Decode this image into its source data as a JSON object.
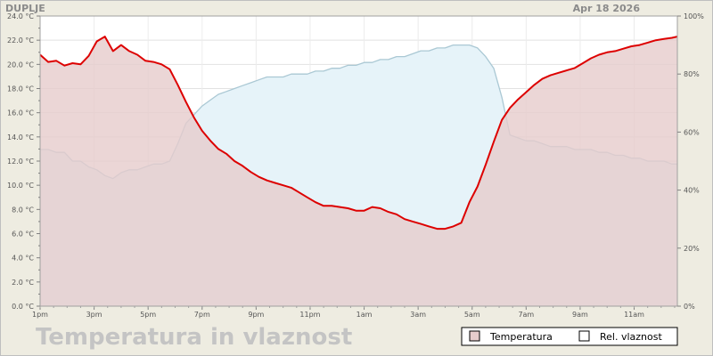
{
  "chart_data": {
    "type": "area",
    "station": "DUPLJE",
    "date": "Apr 18 2026",
    "title": "Temperatura in vlaznost",
    "x_ticks": [
      "1pm",
      "3pm",
      "5pm",
      "7pm",
      "9pm",
      "11pm",
      "1am",
      "3am",
      "5am",
      "7am",
      "9am",
      "11am"
    ],
    "x_range_hours": [
      13,
      36.6
    ],
    "y_left": {
      "unit": "°C",
      "lim": [
        0,
        24
      ],
      "ticks": [
        "0.0 °C",
        "2.0 °C",
        "4.0 °C",
        "6.0 °C",
        "8.0 °C",
        "10.0 °C",
        "12.0 °C",
        "14.0 °C",
        "16.0 °C",
        "18.0 °C",
        "20.0 °C",
        "22.0 °C",
        "24.0 °C"
      ]
    },
    "y_right": {
      "unit": "%",
      "lim": [
        0,
        100
      ],
      "ticks": [
        "0%",
        "20%",
        "40%",
        "60%",
        "80%",
        "100%"
      ]
    },
    "grid": true,
    "legend_position": "bottom-right",
    "series": [
      {
        "name": "Temperatura",
        "axis": "left",
        "color": "#dd0000",
        "fill": "#e6cccc",
        "x": [
          13.0,
          13.3,
          13.6,
          13.9,
          14.2,
          14.5,
          14.8,
          15.1,
          15.4,
          15.7,
          16.0,
          16.3,
          16.6,
          16.9,
          17.2,
          17.5,
          17.8,
          18.1,
          18.4,
          18.7,
          19.0,
          19.3,
          19.6,
          19.9,
          20.2,
          20.5,
          20.8,
          21.1,
          21.4,
          21.7,
          22.0,
          22.3,
          22.6,
          22.9,
          23.2,
          23.5,
          23.8,
          24.1,
          24.4,
          24.7,
          25.0,
          25.3,
          25.6,
          25.9,
          26.2,
          26.5,
          26.8,
          27.1,
          27.4,
          27.7,
          28.0,
          28.3,
          28.6,
          28.9,
          29.2,
          29.5,
          29.8,
          30.1,
          30.4,
          30.7,
          31.0,
          31.3,
          31.6,
          31.9,
          32.2,
          32.5,
          32.8,
          33.1,
          33.4,
          33.7,
          34.0,
          34.3,
          34.6,
          34.9,
          35.2,
          35.5,
          35.8,
          36.1,
          36.4,
          36.6
        ],
        "values": [
          20.8,
          20.2,
          20.3,
          19.9,
          20.1,
          20.0,
          20.7,
          21.9,
          22.3,
          21.1,
          21.6,
          21.1,
          20.8,
          20.3,
          20.2,
          20.0,
          19.6,
          18.3,
          16.9,
          15.6,
          14.5,
          13.7,
          13.0,
          12.6,
          12.0,
          11.6,
          11.1,
          10.7,
          10.4,
          10.2,
          10.0,
          9.8,
          9.4,
          9.0,
          8.6,
          8.3,
          8.3,
          8.2,
          8.1,
          7.9,
          7.9,
          8.2,
          8.1,
          7.8,
          7.6,
          7.2,
          7.0,
          6.8,
          6.6,
          6.4,
          6.4,
          6.6,
          6.9,
          8.6,
          9.9,
          11.7,
          13.6,
          15.4,
          16.4,
          17.1,
          17.7,
          18.3,
          18.8,
          19.1,
          19.3,
          19.5,
          19.7,
          20.1,
          20.5,
          20.8,
          21.0,
          21.1,
          21.3,
          21.5,
          21.6,
          21.8,
          22.0,
          22.1,
          22.2,
          22.3
        ],
        "legend_label": "Temperatura"
      },
      {
        "name": "Rel. vlaznost",
        "axis": "right",
        "color": "#b5d8e3",
        "fill": "#e6f3f9",
        "x": [
          13.0,
          13.3,
          13.6,
          13.9,
          14.2,
          14.5,
          14.8,
          15.1,
          15.4,
          15.7,
          16.0,
          16.3,
          16.6,
          16.9,
          17.2,
          17.5,
          17.8,
          18.1,
          18.4,
          18.7,
          19.0,
          19.3,
          19.6,
          19.9,
          20.2,
          20.5,
          20.8,
          21.1,
          21.4,
          21.7,
          22.0,
          22.3,
          22.6,
          22.9,
          23.2,
          23.5,
          23.8,
          24.1,
          24.4,
          24.7,
          25.0,
          25.3,
          25.6,
          25.9,
          26.2,
          26.5,
          26.8,
          27.1,
          27.4,
          27.7,
          28.0,
          28.3,
          28.6,
          28.9,
          29.2,
          29.5,
          29.8,
          30.1,
          30.4,
          30.7,
          31.0,
          31.3,
          31.6,
          31.9,
          32.2,
          32.5,
          32.8,
          33.1,
          33.4,
          33.7,
          34.0,
          34.3,
          34.6,
          34.9,
          35.2,
          35.5,
          35.8,
          36.1,
          36.4,
          36.6
        ],
        "values": [
          54,
          54,
          53,
          53,
          50,
          50,
          48,
          47,
          45,
          44,
          46,
          47,
          47,
          48,
          49,
          49,
          50,
          56,
          63,
          66,
          69,
          71,
          73,
          74,
          75,
          76,
          77,
          78,
          79,
          79,
          79,
          80,
          80,
          80,
          81,
          81,
          82,
          82,
          83,
          83,
          84,
          84,
          85,
          85,
          86,
          86,
          87,
          88,
          88,
          89,
          89,
          90,
          90,
          90,
          89,
          86,
          82,
          72,
          59,
          58,
          57,
          57,
          56,
          55,
          55,
          55,
          54,
          54,
          54,
          53,
          53,
          52,
          52,
          51,
          51,
          50,
          50,
          50,
          49,
          49
        ],
        "legend_label": "Rel. vlaznost"
      }
    ]
  }
}
